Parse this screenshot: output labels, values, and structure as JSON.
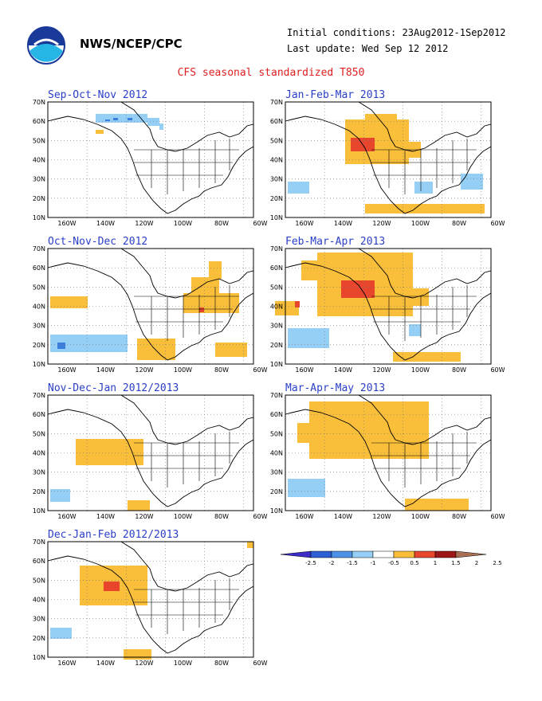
{
  "header": {
    "org": "NWS/NCEP/CPC",
    "initial_conditions": "Initial conditions: 23Aug2012-1Sep2012",
    "last_update": "Last update: Wed Sep 12 2012"
  },
  "title": "CFS seasonal standardized T850",
  "axes": {
    "lat_labels": [
      "70N",
      "60N",
      "50N",
      "40N",
      "30N",
      "20N",
      "10N"
    ],
    "lon_labels": [
      "160W",
      "140W",
      "120W",
      "100W",
      "80W",
      "60W"
    ]
  },
  "panels": [
    {
      "title": "Sep-Oct-Nov 2012",
      "cells": [
        [
          60,
          35,
          70,
          40,
          "#f9bf3b"
        ],
        [
          60,
          15,
          125,
          26,
          "#95cff5"
        ],
        [
          125,
          20,
          140,
          30,
          "#95cff5"
        ],
        [
          140,
          27,
          145,
          35,
          "#95cff5"
        ],
        [
          72,
          22,
          78,
          24,
          "#3a7fde"
        ],
        [
          82,
          20,
          88,
          23,
          "#3a7fde"
        ],
        [
          100,
          20,
          106,
          23,
          "#3a7fde"
        ],
        [
          202,
          200,
          218,
          222,
          "#f9bf3b"
        ],
        [
          180,
          220,
          215,
          240,
          "#f9bf3b"
        ],
        [
          170,
          240,
          240,
          265,
          "#f9bf3b"
        ],
        [
          285,
          250,
          315,
          268,
          "#f9bf3b"
        ],
        [
          190,
          258,
          196,
          264,
          "#e8462c"
        ],
        [
          310,
          250,
          316,
          258,
          "#e8462c"
        ]
      ]
    },
    {
      "title": "Jan-Feb-Mar 2013",
      "cells": [
        [
          75,
          22,
          155,
          78,
          "#f9bf3b"
        ],
        [
          100,
          15,
          140,
          30,
          "#f9bf3b"
        ],
        [
          150,
          50,
          170,
          70,
          "#f9bf3b"
        ],
        [
          82,
          45,
          112,
          62,
          "#e8462c"
        ],
        [
          220,
          90,
          248,
          110,
          "#95cff5"
        ],
        [
          162,
          100,
          185,
          115,
          "#95cff5"
        ],
        [
          3,
          100,
          30,
          115,
          "#95cff5"
        ],
        [
          100,
          128,
          250,
          140,
          "#f9bf3b"
        ]
      ]
    },
    {
      "title": "Oct-Nov-Dec 2012",
      "cells": [
        [
          3,
          60,
          50,
          75,
          "#f9bf3b"
        ],
        [
          3,
          108,
          100,
          130,
          "#95cff5"
        ],
        [
          12,
          118,
          22,
          126,
          "#3a7fde"
        ],
        [
          112,
          113,
          160,
          140,
          "#f9bf3b"
        ],
        [
          210,
          118,
          250,
          136,
          "#f9bf3b"
        ]
      ]
    },
    {
      "title": "Feb-Mar-Apr 2013",
      "cells": [
        [
          40,
          5,
          160,
          85,
          "#f9bf3b"
        ],
        [
          20,
          15,
          70,
          40,
          "#f9bf3b"
        ],
        [
          150,
          50,
          180,
          72,
          "#f9bf3b"
        ],
        [
          70,
          40,
          112,
          62,
          "#e8462c"
        ],
        [
          3,
          100,
          55,
          125,
          "#95cff5"
        ],
        [
          155,
          95,
          170,
          110,
          "#95cff5"
        ],
        [
          135,
          130,
          220,
          142,
          "#f9bf3b"
        ]
      ]
    },
    {
      "title": "Nov-Dec-Jan 2012/2013",
      "cells": [
        [
          35,
          55,
          120,
          88,
          "#f9bf3b"
        ],
        [
          3,
          118,
          28,
          134,
          "#95cff5"
        ],
        [
          100,
          132,
          128,
          145,
          "#f9bf3b"
        ]
      ]
    },
    {
      "title": "Mar-Apr-May 2013",
      "cells": [
        [
          30,
          8,
          180,
          80,
          "#f9bf3b"
        ],
        [
          15,
          35,
          50,
          60,
          "#f9bf3b"
        ],
        [
          3,
          105,
          50,
          128,
          "#95cff5"
        ],
        [
          150,
          130,
          230,
          145,
          "#f9bf3b"
        ]
      ]
    },
    {
      "title": "Dec-Jan-Feb 2012/2013",
      "cells": [
        [
          40,
          30,
          125,
          80,
          "#f9bf3b"
        ],
        [
          70,
          50,
          90,
          62,
          "#e8462c"
        ],
        [
          95,
          135,
          130,
          148,
          "#f9bf3b"
        ],
        [
          3,
          108,
          30,
          122,
          "#95cff5"
        ],
        [
          250,
          0,
          258,
          8,
          "#f9bf3b"
        ]
      ]
    }
  ],
  "legend": {
    "labels": [
      "-2.5",
      "-2",
      "-1.5",
      "-1",
      "-0.5",
      "0.5",
      "1",
      "1.5",
      "2",
      "2.5"
    ],
    "colors": [
      "#3d2dc9",
      "#2e5fd6",
      "#4c93e8",
      "#95cff5",
      "#ffffff",
      "#f9bf3b",
      "#e8462c",
      "#9e1616",
      "#a97054"
    ]
  }
}
